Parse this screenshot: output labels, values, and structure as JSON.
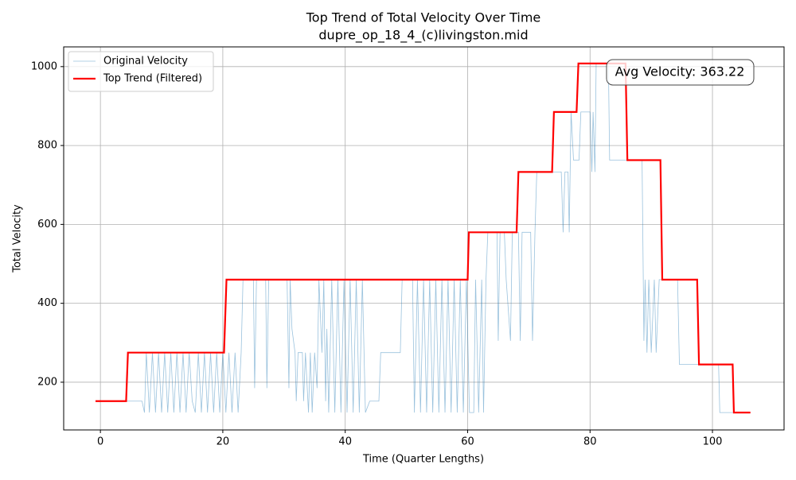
{
  "chart_data": {
    "type": "line",
    "title": "Top Trend of Total Velocity Over Time",
    "subtitle": "dupre_op_18_4_(c)livingston.mid",
    "xlabel": "Time (Quarter Lengths)",
    "ylabel": "Total Velocity",
    "annotation": "Avg Velocity: 363.22",
    "xlim": [
      -6,
      111.7
    ],
    "ylim": [
      79,
      1050
    ],
    "xticks": [
      0,
      20,
      40,
      60,
      80,
      100
    ],
    "yticks": [
      200,
      400,
      600,
      800,
      1000
    ],
    "grid": true,
    "legend": "upper left",
    "series": [
      {
        "name": "Original Velocity",
        "color": "#1f77b4",
        "x": [
          -0.8,
          6.8,
          7.2,
          7.5,
          8.0,
          8.5,
          9.0,
          9.5,
          10.0,
          10.5,
          11.0,
          11.5,
          12.0,
          12.5,
          13.0,
          13.5,
          14.0,
          14.5,
          15.0,
          15.5,
          16.0,
          16.5,
          17.0,
          17.5,
          18.0,
          18.5,
          19.0,
          19.5,
          20.0,
          20.5,
          21.0,
          21.5,
          22.0,
          22.5,
          23.0,
          23.3,
          25.0,
          25.2,
          25.5,
          27.0,
          27.2,
          27.5,
          30.5,
          30.8,
          31.0,
          31.3,
          31.8,
          32.0,
          32.3,
          33.0,
          33.2,
          33.5,
          34.0,
          34.3,
          34.6,
          35.0,
          35.4,
          35.7,
          36.2,
          36.5,
          36.8,
          37.0,
          37.3,
          37.8,
          38.3,
          38.8,
          39.3,
          39.8,
          40.3,
          40.8,
          41.3,
          41.8,
          42.3,
          42.8,
          43.3,
          44.0,
          45.5,
          45.8,
          49.0,
          49.3,
          51.0,
          51.3,
          51.8,
          52.3,
          52.8,
          53.3,
          53.8,
          54.3,
          54.8,
          55.3,
          55.8,
          56.3,
          56.8,
          57.3,
          57.8,
          58.3,
          58.8,
          59.3,
          59.8,
          60.3,
          61.0,
          61.3,
          61.8,
          62.3,
          62.6,
          63.0,
          63.3,
          64.8,
          65.0,
          65.3,
          66.0,
          66.3,
          67.0,
          67.3,
          68.3,
          68.6,
          68.9,
          70.3,
          70.6,
          71.0,
          71.3,
          75.3,
          75.6,
          75.9,
          76.4,
          76.6,
          76.9,
          77.3,
          78.2,
          78.5,
          80.0,
          80.3,
          80.5,
          80.8,
          81.0,
          83.0,
          83.2,
          88.5,
          88.8,
          89.0,
          89.3,
          89.6,
          90.0,
          90.5,
          90.8,
          91.3,
          94.3,
          94.6,
          101.0,
          101.2,
          106.2
        ],
        "values": [
          152,
          152,
          123,
          275,
          123,
          275,
          123,
          275,
          123,
          275,
          123,
          275,
          123,
          275,
          123,
          275,
          123,
          275,
          152,
          123,
          275,
          123,
          275,
          123,
          275,
          123,
          275,
          123,
          275,
          123,
          275,
          123,
          275,
          123,
          275,
          460,
          460,
          185,
          460,
          460,
          185,
          460,
          460,
          185,
          460,
          335,
          275,
          152,
          275,
          275,
          152,
          275,
          123,
          275,
          123,
          275,
          185,
          460,
          275,
          460,
          152,
          335,
          123,
          460,
          123,
          460,
          123,
          460,
          123,
          460,
          123,
          460,
          123,
          460,
          123,
          152,
          152,
          275,
          275,
          460,
          460,
          123,
          460,
          123,
          460,
          123,
          460,
          123,
          460,
          123,
          460,
          123,
          460,
          123,
          460,
          123,
          460,
          123,
          460,
          123,
          123,
          460,
          123,
          460,
          123,
          460,
          580,
          580,
          305,
          580,
          580,
          460,
          305,
          580,
          580,
          305,
          580,
          580,
          305,
          580,
          733,
          733,
          580,
          733,
          733,
          580,
          885,
          763,
          763,
          885,
          885,
          733,
          885,
          733,
          1008,
          1008,
          763,
          763,
          305,
          460,
          275,
          460,
          275,
          460,
          275,
          460,
          460,
          245,
          245,
          123,
          123
        ]
      },
      {
        "name": "Top Trend (Filtered)",
        "color": "#ff0000",
        "x": [
          -0.8,
          4.2,
          4.5,
          20.2,
          20.6,
          60.0,
          60.2,
          68.0,
          68.3,
          73.8,
          74.1,
          77.8,
          78.1,
          85.8,
          86.1,
          91.5,
          91.8,
          97.5,
          97.8,
          103.3,
          103.5,
          106.2
        ],
        "values": [
          152,
          152,
          275,
          275,
          460,
          460,
          580,
          580,
          733,
          733,
          885,
          885,
          1008,
          1008,
          763,
          763,
          460,
          460,
          245,
          245,
          123,
          123
        ]
      }
    ]
  }
}
